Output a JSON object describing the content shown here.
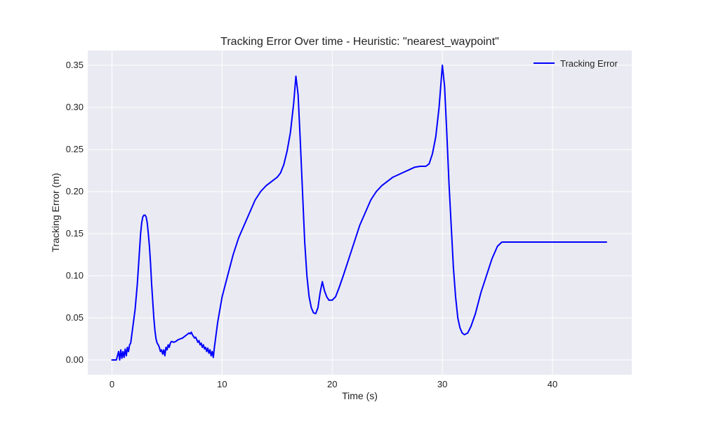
{
  "chart_data": {
    "type": "line",
    "title": "Tracking Error Over time - Heuristic: \"nearest_waypoint\"",
    "xlabel": "Time (s)",
    "ylabel": "Tracking Error (m)",
    "xlim": [
      -2.2,
      47.2
    ],
    "ylim": [
      -0.0175,
      0.3675
    ],
    "x_ticks": [
      0,
      10,
      20,
      30,
      40
    ],
    "y_ticks": [
      0.0,
      0.05,
      0.1,
      0.15,
      0.2,
      0.25,
      0.3,
      0.35
    ],
    "x_tick_labels": [
      "0",
      "10",
      "20",
      "30",
      "40"
    ],
    "y_tick_labels": [
      "0.00",
      "0.05",
      "0.10",
      "0.15",
      "0.20",
      "0.25",
      "0.30",
      "0.35"
    ],
    "grid": true,
    "legend_position": "top-right",
    "series": [
      {
        "name": "Tracking Error",
        "color": "#0000ff",
        "points": [
          [
            0.0,
            0.0
          ],
          [
            0.4,
            0.0
          ],
          [
            0.5,
            0.005
          ],
          [
            0.6,
            0.01
          ],
          [
            0.7,
            0.0
          ],
          [
            0.8,
            0.012
          ],
          [
            0.9,
            0.002
          ],
          [
            1.0,
            0.01
          ],
          [
            1.1,
            0.003
          ],
          [
            1.2,
            0.013
          ],
          [
            1.3,
            0.005
          ],
          [
            1.4,
            0.015
          ],
          [
            1.5,
            0.01
          ],
          [
            1.6,
            0.018
          ],
          [
            1.7,
            0.02
          ],
          [
            1.8,
            0.03
          ],
          [
            1.9,
            0.04
          ],
          [
            2.0,
            0.05
          ],
          [
            2.1,
            0.06
          ],
          [
            2.2,
            0.075
          ],
          [
            2.3,
            0.09
          ],
          [
            2.4,
            0.11
          ],
          [
            2.5,
            0.13
          ],
          [
            2.6,
            0.15
          ],
          [
            2.7,
            0.163
          ],
          [
            2.8,
            0.17
          ],
          [
            2.9,
            0.172
          ],
          [
            3.0,
            0.172
          ],
          [
            3.1,
            0.17
          ],
          [
            3.2,
            0.163
          ],
          [
            3.3,
            0.15
          ],
          [
            3.4,
            0.135
          ],
          [
            3.5,
            0.115
          ],
          [
            3.6,
            0.09
          ],
          [
            3.7,
            0.07
          ],
          [
            3.8,
            0.05
          ],
          [
            3.9,
            0.035
          ],
          [
            4.0,
            0.025
          ],
          [
            4.1,
            0.02
          ],
          [
            4.2,
            0.018
          ],
          [
            4.3,
            0.015
          ],
          [
            4.4,
            0.01
          ],
          [
            4.5,
            0.012
          ],
          [
            4.6,
            0.007
          ],
          [
            4.7,
            0.012
          ],
          [
            4.8,
            0.005
          ],
          [
            4.9,
            0.015
          ],
          [
            5.0,
            0.012
          ],
          [
            5.1,
            0.018
          ],
          [
            5.2,
            0.015
          ],
          [
            5.3,
            0.02
          ],
          [
            5.4,
            0.022
          ],
          [
            5.6,
            0.021
          ],
          [
            5.8,
            0.022
          ],
          [
            6.0,
            0.024
          ],
          [
            6.2,
            0.025
          ],
          [
            6.4,
            0.026
          ],
          [
            6.6,
            0.028
          ],
          [
            6.8,
            0.03
          ],
          [
            7.0,
            0.032
          ],
          [
            7.1,
            0.031
          ],
          [
            7.2,
            0.033
          ],
          [
            7.3,
            0.03
          ],
          [
            7.4,
            0.028
          ],
          [
            7.5,
            0.026
          ],
          [
            7.6,
            0.027
          ],
          [
            7.7,
            0.024
          ],
          [
            7.8,
            0.021
          ],
          [
            7.9,
            0.023
          ],
          [
            8.0,
            0.018
          ],
          [
            8.1,
            0.02
          ],
          [
            8.2,
            0.015
          ],
          [
            8.3,
            0.018
          ],
          [
            8.4,
            0.013
          ],
          [
            8.5,
            0.015
          ],
          [
            8.6,
            0.01
          ],
          [
            8.7,
            0.014
          ],
          [
            8.8,
            0.008
          ],
          [
            8.9,
            0.012
          ],
          [
            9.0,
            0.005
          ],
          [
            9.1,
            0.01
          ],
          [
            9.2,
            0.003
          ],
          [
            9.3,
            0.015
          ],
          [
            9.4,
            0.025
          ],
          [
            9.5,
            0.035
          ],
          [
            9.6,
            0.045
          ],
          [
            9.8,
            0.06
          ],
          [
            10.0,
            0.075
          ],
          [
            10.5,
            0.1
          ],
          [
            11.0,
            0.125
          ],
          [
            11.5,
            0.145
          ],
          [
            12.0,
            0.16
          ],
          [
            12.5,
            0.175
          ],
          [
            13.0,
            0.19
          ],
          [
            13.5,
            0.2
          ],
          [
            14.0,
            0.207
          ],
          [
            14.5,
            0.212
          ],
          [
            15.0,
            0.217
          ],
          [
            15.3,
            0.222
          ],
          [
            15.6,
            0.232
          ],
          [
            15.9,
            0.248
          ],
          [
            16.2,
            0.27
          ],
          [
            16.5,
            0.305
          ],
          [
            16.7,
            0.337
          ],
          [
            16.9,
            0.315
          ],
          [
            17.1,
            0.26
          ],
          [
            17.3,
            0.2
          ],
          [
            17.5,
            0.14
          ],
          [
            17.7,
            0.1
          ],
          [
            17.9,
            0.075
          ],
          [
            18.1,
            0.062
          ],
          [
            18.3,
            0.056
          ],
          [
            18.5,
            0.055
          ],
          [
            18.7,
            0.062
          ],
          [
            18.9,
            0.08
          ],
          [
            19.1,
            0.093
          ],
          [
            19.3,
            0.082
          ],
          [
            19.5,
            0.075
          ],
          [
            19.7,
            0.071
          ],
          [
            20.0,
            0.071
          ],
          [
            20.3,
            0.075
          ],
          [
            20.6,
            0.085
          ],
          [
            21.0,
            0.1
          ],
          [
            21.5,
            0.12
          ],
          [
            22.0,
            0.14
          ],
          [
            22.5,
            0.16
          ],
          [
            23.0,
            0.175
          ],
          [
            23.5,
            0.19
          ],
          [
            24.0,
            0.2
          ],
          [
            24.5,
            0.207
          ],
          [
            25.0,
            0.212
          ],
          [
            25.5,
            0.217
          ],
          [
            26.0,
            0.22
          ],
          [
            26.5,
            0.223
          ],
          [
            27.0,
            0.226
          ],
          [
            27.5,
            0.229
          ],
          [
            28.0,
            0.23
          ],
          [
            28.5,
            0.23
          ],
          [
            28.8,
            0.233
          ],
          [
            29.1,
            0.245
          ],
          [
            29.4,
            0.265
          ],
          [
            29.7,
            0.3
          ],
          [
            30.0,
            0.35
          ],
          [
            30.2,
            0.325
          ],
          [
            30.4,
            0.27
          ],
          [
            30.6,
            0.21
          ],
          [
            30.8,
            0.16
          ],
          [
            31.0,
            0.11
          ],
          [
            31.2,
            0.075
          ],
          [
            31.4,
            0.05
          ],
          [
            31.6,
            0.038
          ],
          [
            31.8,
            0.032
          ],
          [
            32.0,
            0.03
          ],
          [
            32.3,
            0.032
          ],
          [
            32.6,
            0.04
          ],
          [
            33.0,
            0.055
          ],
          [
            33.5,
            0.08
          ],
          [
            34.0,
            0.1
          ],
          [
            34.5,
            0.12
          ],
          [
            35.0,
            0.135
          ],
          [
            35.4,
            0.14
          ],
          [
            40.0,
            0.14
          ],
          [
            44.9,
            0.14
          ]
        ]
      }
    ]
  }
}
